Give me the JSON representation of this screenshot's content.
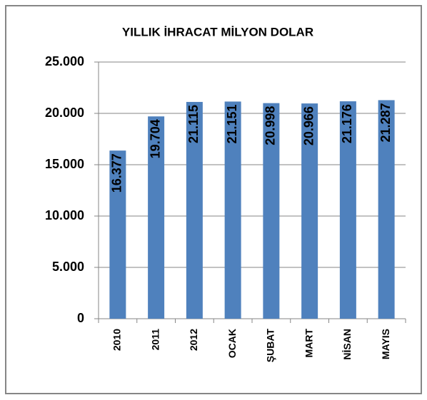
{
  "chart_data": {
    "type": "bar",
    "title": "YILLIK İHRACAT MİLYON DOLAR",
    "categories": [
      "2010",
      "2011",
      "2012",
      "OCAK",
      "ŞUBAT",
      "MART",
      "NİSAN",
      "MAYIS"
    ],
    "values": [
      16377,
      19704,
      21115,
      21151,
      20998,
      20966,
      21176,
      21287
    ],
    "value_labels": [
      "16.377",
      "19.704",
      "21.115",
      "21.151",
      "20.998",
      "20.966",
      "21.176",
      "21.287"
    ],
    "color": "#4f81bd",
    "ylim": [
      0,
      25000
    ],
    "yticks": [
      0,
      {
        "value": 5000,
        "label": "5.000"
      },
      {
        "value": 10000,
        "label": "10.000"
      },
      {
        "value": 15000,
        "label": "15.000"
      },
      {
        "value": 20000,
        "label": "20.000"
      },
      {
        "value": 25000,
        "label": "25.000"
      }
    ],
    "grid": true
  }
}
